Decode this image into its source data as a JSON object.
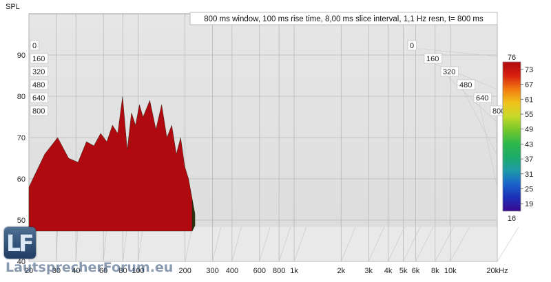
{
  "chart_data": {
    "type": "waterfall",
    "title": "800 ms window, 100 ms rise time, 8,00 ms slice interval, 1,1 Hz resn, t= 800 ms",
    "ylabel": "SPL",
    "xlabel": "",
    "x_scale": "log",
    "xlim": [
      20,
      20000
    ],
    "ylim": [
      40,
      100
    ],
    "x_ticks": [
      20,
      30,
      40,
      60,
      80,
      100,
      200,
      300,
      400,
      600,
      800,
      1000,
      2000,
      3000,
      4000,
      5000,
      6000,
      8000,
      10000,
      20000
    ],
    "x_tick_labels": [
      "20",
      "30",
      "40",
      "60",
      "80",
      "100",
      "200",
      "300",
      "400",
      "600",
      "800",
      "1k",
      "2k",
      "3k",
      "4k",
      "5k",
      "6k",
      "8k",
      "10k",
      "20kHz"
    ],
    "y_ticks": [
      40,
      50,
      60,
      70,
      80,
      90
    ],
    "y_tick_labels": [
      "40",
      "50",
      "60",
      "70",
      "80",
      "90"
    ],
    "time_ticks_ms": [
      0,
      160,
      320,
      480,
      640,
      800
    ],
    "time_tick_labels": [
      "0",
      "160",
      "320",
      "480",
      "640",
      "800"
    ],
    "colorbar": {
      "min": 16,
      "max": 76,
      "ticks": [
        16,
        19,
        25,
        31,
        37,
        43,
        49,
        55,
        61,
        67,
        73,
        76
      ],
      "tick_labels": [
        "16",
        "19",
        "25",
        "31",
        "37",
        "43",
        "49",
        "55",
        "61",
        "67",
        "73",
        "76"
      ],
      "colors": [
        "#3a0a8c",
        "#1c2fb8",
        "#1a63c9",
        "#1e9aa8",
        "#1dac6a",
        "#2fb84a",
        "#76c82a",
        "#c8d92a",
        "#f0c21a",
        "#f07a10",
        "#d81f10",
        "#b00a10"
      ]
    },
    "first_slice": {
      "freq_hz": [
        20,
        25,
        30,
        35,
        40,
        45,
        50,
        55,
        60,
        65,
        70,
        75,
        80,
        85,
        90,
        95,
        100,
        110,
        120,
        130,
        140,
        150,
        160,
        170,
        180,
        190,
        200
      ],
      "spl_db": [
        58,
        66,
        70,
        65,
        64,
        69,
        68,
        71,
        69,
        73,
        71,
        80,
        67,
        76,
        73,
        78,
        75,
        79,
        72,
        78,
        70,
        73,
        66,
        70,
        63,
        60,
        55
      ]
    }
  },
  "watermark": {
    "logo_letters": "LF",
    "site": "LautsprecherForum.eu"
  }
}
